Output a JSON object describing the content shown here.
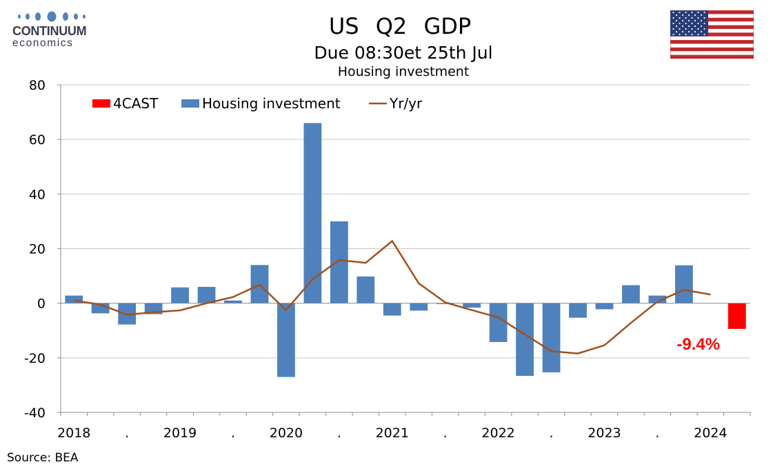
{
  "header": {
    "logo_top": "CONTINUUM",
    "logo_bottom": "economics",
    "title": "US Q2 GDP",
    "subtitle": "Due 08:30et 25th Jul",
    "chart_title": "Housing investment",
    "flag_icon": "us-flag-icon"
  },
  "footer": {
    "source": "Source: BEA"
  },
  "colors": {
    "forecast": "#ff0000",
    "bars": "#4f81bd",
    "line": "#a0521a",
    "annotation": "#ff0000",
    "grid": "#c8c8c8"
  },
  "chart_data": {
    "type": "bar",
    "title": "Housing investment",
    "xlabel": "",
    "ylabel": "",
    "ylim": [
      -40,
      80
    ],
    "yticks": [
      80,
      60,
      40,
      20,
      0,
      -20,
      -40
    ],
    "grid": true,
    "legend_position": "top-left",
    "x_tick_labels": [
      "2018",
      ".",
      "2019",
      ".",
      "2020",
      ".",
      "2021",
      ".",
      "2022",
      ".",
      "2023",
      ".",
      "2024"
    ],
    "categories": [
      "2018Q1",
      "2018Q2",
      "2018Q3",
      "2018Q4",
      "2019Q1",
      "2019Q2",
      "2019Q3",
      "2019Q4",
      "2020Q1",
      "2020Q2",
      "2020Q3",
      "2020Q4",
      "2021Q1",
      "2021Q2",
      "2021Q3",
      "2021Q4",
      "2022Q1",
      "2022Q2",
      "2022Q3",
      "2022Q4",
      "2023Q1",
      "2023Q2",
      "2023Q3",
      "2023Q4",
      "2024Q1",
      "2024Q2"
    ],
    "series": [
      {
        "name": "4CAST",
        "kind": "bar",
        "values": [
          null,
          null,
          null,
          null,
          null,
          null,
          null,
          null,
          null,
          null,
          null,
          null,
          null,
          null,
          null,
          null,
          null,
          null,
          null,
          null,
          null,
          null,
          null,
          null,
          null,
          -9.4
        ]
      },
      {
        "name": "Housing investment",
        "kind": "bar",
        "values": [
          2.8,
          -3.7,
          -7.8,
          -4.0,
          5.8,
          6.0,
          1.0,
          14.0,
          -27.0,
          66.0,
          30.0,
          9.8,
          -4.5,
          -2.7,
          -0.3,
          -1.6,
          -14.2,
          -26.6,
          -25.3,
          -5.3,
          -2.2,
          6.6,
          2.8,
          13.9,
          null,
          null
        ]
      },
      {
        "name": "Yr/yr",
        "kind": "line",
        "values": [
          1.0,
          -0.5,
          -4.2,
          -3.3,
          -2.6,
          0.0,
          2.3,
          6.8,
          -2.5,
          8.8,
          15.8,
          14.8,
          22.8,
          7.3,
          0.3,
          -2.5,
          -5.2,
          -11.4,
          -17.6,
          -18.4,
          -15.4,
          -7.2,
          0.6,
          4.9,
          3.2,
          null
        ]
      }
    ],
    "annotations": [
      {
        "category": "2024Q2",
        "text": "-9.4%"
      }
    ]
  }
}
